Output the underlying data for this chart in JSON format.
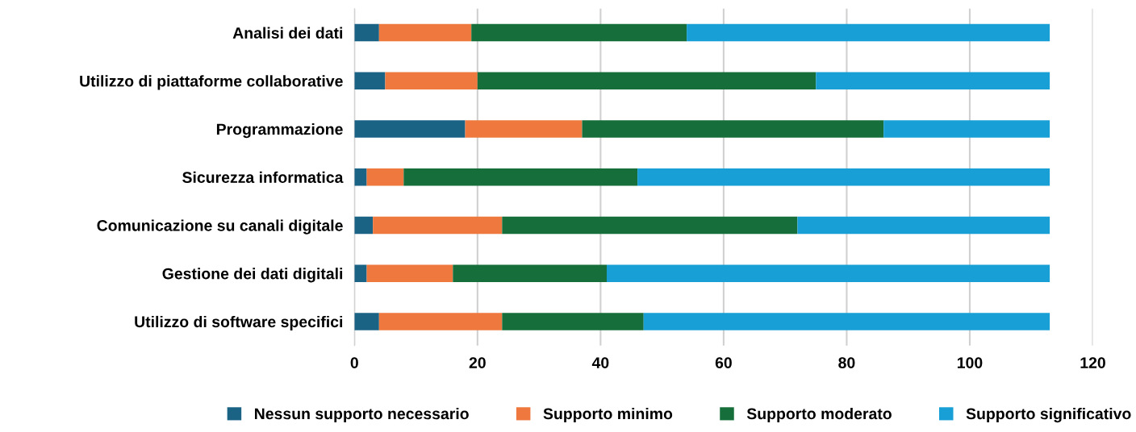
{
  "chart_data": {
    "type": "bar",
    "orientation": "horizontal",
    "stacked": true,
    "categories": [
      "Analisi dei dati",
      "Utilizzo di piattaforme collaborative",
      "Programmazione",
      "Sicurezza informatica",
      "Comunicazione su canali digitale",
      "Gestione dei dati digitali",
      "Utilizzo di software specifici"
    ],
    "series": [
      {
        "name": "Nessun supporto necessario",
        "color": "#1b6385",
        "values": [
          4,
          5,
          18,
          2,
          3,
          2,
          4
        ]
      },
      {
        "name": "Supporto minimo",
        "color": "#ee783e",
        "values": [
          15,
          15,
          19,
          6,
          21,
          14,
          20
        ]
      },
      {
        "name": "Supporto moderato",
        "color": "#166e3a",
        "values": [
          35,
          55,
          49,
          38,
          48,
          25,
          23
        ]
      },
      {
        "name": "Supporto significativo",
        "color": "#18a0d6",
        "values": [
          59,
          38,
          27,
          67,
          41,
          72,
          66
        ]
      }
    ],
    "xlim": [
      0,
      120
    ],
    "xticks": [
      0,
      20,
      40,
      60,
      80,
      100,
      120
    ],
    "grid": "x",
    "legend": "bottom"
  }
}
